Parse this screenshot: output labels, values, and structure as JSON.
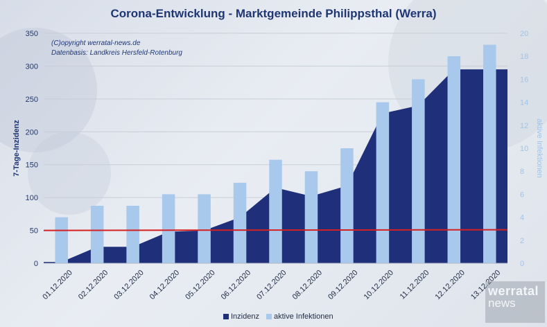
{
  "title": "Corona-Entwicklung - Marktgemeinde Philippsthal (Werra)",
  "credits": {
    "line1": "(C)opyright werratal-news.de",
    "line2": "Datenbasis: Landkreis Hersfeld-Rotenburg"
  },
  "logo": {
    "line1": "werratal",
    "line2": "news"
  },
  "colors": {
    "inzidenz": "#1f2f7a",
    "infektionen": "#a8c8ec",
    "threshold": "#d42020",
    "grid": "#c8ced8",
    "axis_left": "#1f3672",
    "axis_right": "#9fc3ea"
  },
  "chart_data": {
    "type": "area+bar",
    "categories": [
      "01.12.2020",
      "02.12.2020",
      "03.12.2020",
      "04.12.2020",
      "05.12.2020",
      "06.12.2020",
      "07.12.2020",
      "08.12.2020",
      "09.12.2020",
      "10.12.2020",
      "11.12.2020",
      "12.12.2020",
      "13.12.2020"
    ],
    "series": [
      {
        "name": "Inzidenz",
        "axis": "left",
        "kind": "area",
        "values": [
          2,
          25,
          25,
          48,
          50,
          70,
          115,
          102,
          118,
          228,
          240,
          295,
          295
        ]
      },
      {
        "name": "aktive Infektionen",
        "axis": "right",
        "kind": "bar",
        "values": [
          4,
          5,
          5,
          6,
          6,
          7,
          9,
          8,
          10,
          14,
          16,
          18,
          19
        ]
      }
    ],
    "threshold": {
      "axis": "left",
      "from": 50,
      "to": 51
    },
    "ylabel_left": "7-Tage-Inzidenz",
    "ylabel_right": "aktive Infektionen",
    "ylim_left": [
      0,
      350
    ],
    "yticks_left": [
      0,
      50,
      100,
      150,
      200,
      250,
      300,
      350
    ],
    "ylim_right": [
      0,
      20
    ],
    "yticks_right": [
      0,
      2,
      4,
      6,
      8,
      10,
      12,
      14,
      16,
      18,
      20
    ],
    "legend_position": "bottom",
    "grid": true
  }
}
